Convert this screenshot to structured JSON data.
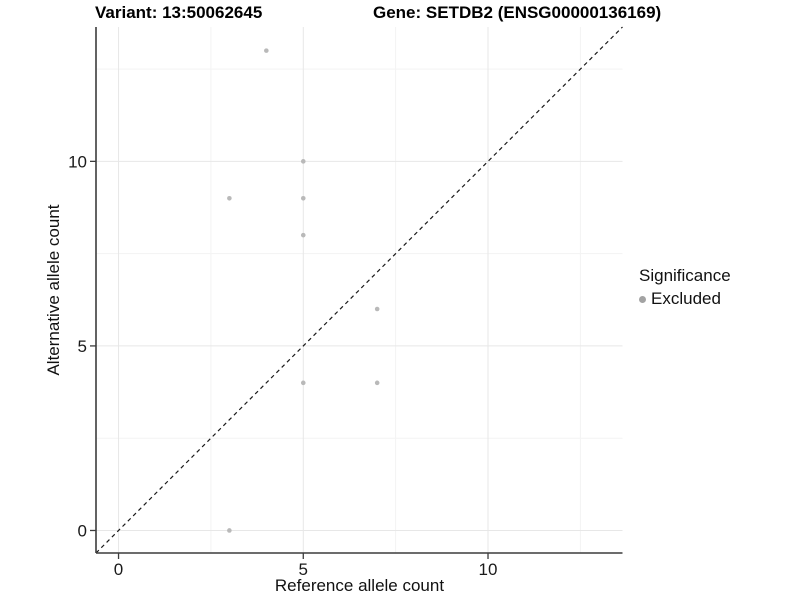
{
  "chart_data": {
    "type": "scatter",
    "titles": {
      "variant": "Variant: 13:50062645",
      "gene": "Gene: SETDB2 (ENSG00000136169)"
    },
    "xlabel": "Reference allele count",
    "ylabel": "Alternative allele count",
    "xlim": [
      -0.61,
      13.64
    ],
    "ylim": [
      -0.61,
      13.64
    ],
    "x_major_ticks": [
      0,
      5,
      10
    ],
    "y_major_ticks": [
      0,
      5,
      10
    ],
    "x_minor_ticks": [
      2.5,
      7.5,
      12.5
    ],
    "y_minor_ticks": [
      2.5,
      7.5,
      12.5
    ],
    "grid": true,
    "reference_line": {
      "type": "identity",
      "style": "dashed"
    },
    "series": [
      {
        "name": "Excluded",
        "color": "#b9b9b9",
        "points": [
          {
            "x": 4,
            "y": 13
          },
          {
            "x": 5,
            "y": 10
          },
          {
            "x": 3,
            "y": 9
          },
          {
            "x": 5,
            "y": 9
          },
          {
            "x": 5,
            "y": 8
          },
          {
            "x": 7,
            "y": 6
          },
          {
            "x": 5,
            "y": 4
          },
          {
            "x": 7,
            "y": 4
          },
          {
            "x": 3,
            "y": 0
          }
        ]
      }
    ],
    "legend": {
      "title": "Significance",
      "position": "right",
      "items": [
        {
          "label": "Excluded",
          "marker": "point",
          "color": "#a3a3a3"
        }
      ]
    }
  },
  "colors": {
    "background": "#ffffff",
    "grid_major": "#e7e7e7",
    "grid_minor": "#f3f3f3",
    "axis_line": "#3c3c3c",
    "axis_text": "#1a1a1a",
    "reference_line": "#1a1a1a"
  }
}
